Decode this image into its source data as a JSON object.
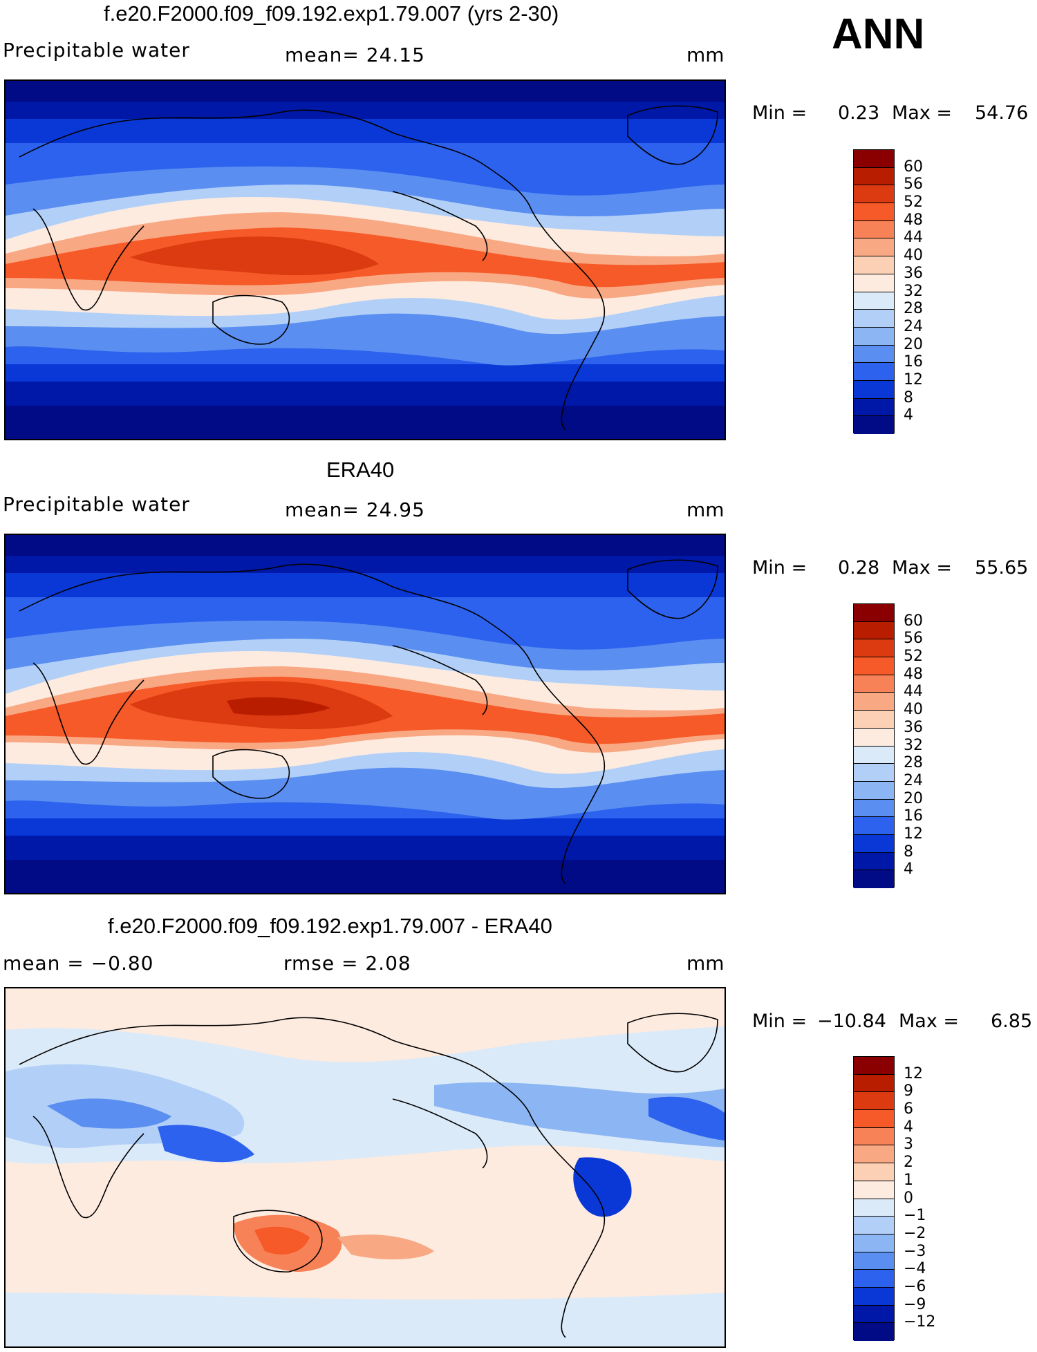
{
  "season": "ANN",
  "panels": [
    {
      "title": "f.e20.F2000.f09_f09.192.exp1.79.007 (yrs 2-30)",
      "left_label": "Precipitable water",
      "mid_label": "mean=   24.15",
      "units": "mm",
      "min_label": "Min =",
      "min_value": "0.23",
      "max_label": "Max =",
      "max_value": "54.76"
    },
    {
      "title": "ERA40",
      "left_label": "Precipitable water",
      "mid_label": "mean=   24.95",
      "units": "mm",
      "min_label": "Min =",
      "min_value": "0.28",
      "max_label": "Max =",
      "max_value": "55.65"
    },
    {
      "title": "f.e20.F2000.f09_f09.192.exp1.79.007 - ERA40",
      "left_label": "mean =   −0.80",
      "mid_label": "rmse =    2.08",
      "units": "mm",
      "min_label": "Min =",
      "min_value": "−10.84",
      "max_label": "Max =",
      "max_value": "6.85"
    }
  ],
  "legend_abs": {
    "ticks": [
      "60",
      "56",
      "52",
      "48",
      "44",
      "40",
      "36",
      "32",
      "28",
      "24",
      "20",
      "16",
      "12",
      "8",
      "4"
    ],
    "colors": [
      "#8a0000",
      "#b81d00",
      "#dc3a10",
      "#f55a28",
      "#f88257",
      "#f9a884",
      "#fcd0b4",
      "#fdebe0",
      "#dbeaf8",
      "#b2d0f7",
      "#8cb5f3",
      "#5a8ef0",
      "#2c62ee",
      "#0a38d6",
      "#0018a8",
      "#000b85"
    ]
  },
  "legend_diff": {
    "ticks": [
      "12",
      "9",
      "6",
      "4",
      "3",
      "2",
      "1",
      "0",
      "−1",
      "−2",
      "−3",
      "−4",
      "−6",
      "−9",
      "−12"
    ],
    "colors": [
      "#8a0000",
      "#b81d00",
      "#dc3a10",
      "#f55a28",
      "#f88257",
      "#f9a884",
      "#fcd0b4",
      "#fdebe0",
      "#dbeaf8",
      "#b2d0f7",
      "#8cb5f3",
      "#5a8ef0",
      "#2c62ee",
      "#0a38d6",
      "#0018a8",
      "#000b85"
    ]
  }
}
